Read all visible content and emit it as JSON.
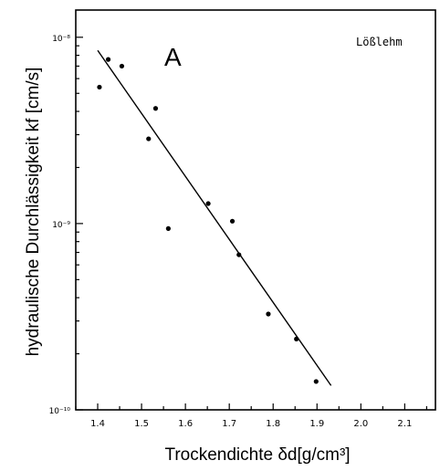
{
  "chart_data": {
    "type": "scatter",
    "panel_label": "A",
    "annotation": "Lößlehm",
    "xlabel": "Trockendichte δd[g/cm³]",
    "ylabel": "hydraulische Durchlässigkeit kf [cm/s]",
    "xlim": [
      1.35,
      2.17
    ],
    "ylim": [
      1e-10,
      1.4e-08
    ],
    "y_scale": "log",
    "x_ticks": [
      "1.4",
      "1.5",
      "1.6",
      "1.7",
      "1.8",
      "1.9",
      "2.0",
      "2.1"
    ],
    "y_ticks": [
      "10⁻⁸",
      "10⁻⁹",
      "10⁻¹⁰"
    ],
    "grid": false,
    "series": [
      {
        "points": [
          [
            1.404,
            5.4e-09
          ],
          [
            1.424,
            7.6e-09
          ],
          [
            1.455,
            7e-09
          ],
          [
            1.516,
            2.85e-09
          ],
          [
            1.532,
            4.15e-09
          ],
          [
            1.561,
            9.4e-10
          ],
          [
            1.652,
            1.28e-09
          ],
          [
            1.707,
            1.03e-09
          ],
          [
            1.722,
            6.8e-10
          ],
          [
            1.789,
            3.27e-10
          ],
          [
            1.853,
            2.4e-10
          ],
          [
            1.898,
            1.42e-10
          ]
        ]
      }
    ],
    "fit_line": {
      "x": [
        1.4,
        1.932
      ],
      "y": [
        8.5e-09,
        1.35e-10
      ]
    }
  }
}
